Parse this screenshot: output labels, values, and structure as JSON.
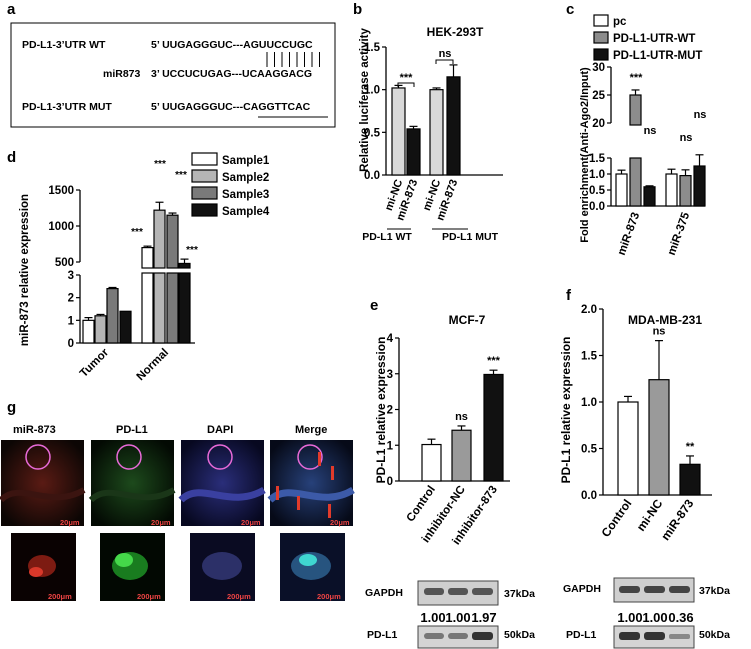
{
  "panel_letters": [
    "a",
    "b",
    "c",
    "d",
    "e",
    "f",
    "g"
  ],
  "panel_a": {
    "rows": [
      {
        "label": "PD-L1-3’UTR WT",
        "seq": "5’ UUGAGGGUC---AGUUCCUGC"
      },
      {
        "label": "miR873",
        "seq": "3’ UCCUCUGAG---UCAAGGACG"
      },
      {
        "label": "PD-L1-3’UTR MUT",
        "seq": "5’ UUGAGGGUC---CAGGTTCAC"
      }
    ]
  },
  "chart_data": [
    {
      "panel": "b",
      "type": "bar",
      "title": "HEK-293T",
      "ylabel": "Relative luciferase activity",
      "ylim": [
        0,
        1.5
      ],
      "yticks": [
        "0.0",
        "0.5",
        "1.0",
        "1.5"
      ],
      "categories": [
        "mi-NC",
        "miR-873",
        "mi-NC",
        "miR-873"
      ],
      "values": [
        1.02,
        0.54,
        1.0,
        1.15
      ],
      "errors": [
        0.03,
        0.03,
        0.02,
        0.14
      ],
      "colors": [
        "#d9d9d9",
        "#111111",
        "#d9d9d9",
        "#111111"
      ],
      "groups": [
        "PD-L1 WT",
        "PD-L1 MUT"
      ],
      "annotations": [
        "***",
        "ns"
      ]
    },
    {
      "panel": "c",
      "type": "bar",
      "ylabel": "Fold enrichment(Anti-Ago2/Input)",
      "legend": [
        "pc",
        "PD-L1-UTR-WT",
        "PD-L1-UTR-MUT"
      ],
      "legend_colors": [
        "#ffffff",
        "#8c8c8c",
        "#111111"
      ],
      "categories": [
        "miR-873",
        "miR-375"
      ],
      "series": [
        {
          "name": "pc",
          "values": [
            1.0,
            1.0
          ],
          "errors": [
            0.12,
            0.15
          ]
        },
        {
          "name": "PD-L1-UTR-WT",
          "values": [
            25,
            0.95
          ],
          "errors": [
            0.9,
            0.18
          ]
        },
        {
          "name": "PD-L1-UTR-MUT",
          "values": [
            0.6,
            1.25
          ],
          "errors": [
            0.03,
            0.35
          ]
        }
      ],
      "yticks_upper": [
        "20",
        "25",
        "30"
      ],
      "yticks_lower": [
        "0.0",
        "0.5",
        "1.0",
        "1.5"
      ],
      "annotations": [
        "***",
        "ns",
        "ns",
        "ns"
      ]
    },
    {
      "panel": "d",
      "type": "bar",
      "ylabel": "miR-873 relative expression",
      "legend": [
        "Sample1",
        "Sample2",
        "Sample3",
        "Sample4"
      ],
      "legend_colors": [
        "#ffffff",
        "#b5b5b5",
        "#7a7a7a",
        "#111111"
      ],
      "categories": [
        "Tumor",
        "Normal"
      ],
      "series": [
        {
          "name": "Sample1",
          "values": [
            1.0,
            700
          ],
          "errors": [
            0.12,
            20
          ]
        },
        {
          "name": "Sample2",
          "values": [
            1.2,
            1220
          ],
          "errors": [
            0.06,
            110
          ]
        },
        {
          "name": "Sample3",
          "values": [
            2.4,
            1150
          ],
          "errors": [
            0.05,
            30
          ]
        },
        {
          "name": "Sample4",
          "values": [
            1.4,
            480
          ],
          "errors": [
            0.0,
            60
          ]
        }
      ],
      "yticks_upper": [
        "500",
        "1000",
        "1500"
      ],
      "yticks_lower": [
        "0",
        "1",
        "2",
        "3"
      ],
      "annotations": [
        "***",
        "***",
        "***",
        "***"
      ]
    },
    {
      "panel": "e",
      "type": "bar",
      "title": "MCF-7",
      "ylabel": "PD-L1 relative expression",
      "ylim": [
        0,
        4
      ],
      "yticks": [
        "0",
        "1",
        "2",
        "3",
        "4"
      ],
      "categories": [
        "Control",
        "inhibitor-NC",
        "inhibitor-873"
      ],
      "values": [
        1.02,
        1.42,
        2.98
      ],
      "errors": [
        0.15,
        0.12,
        0.12
      ],
      "colors": [
        "#ffffff",
        "#9a9a9a",
        "#111111"
      ],
      "annotations": [
        "",
        "ns",
        "***"
      ]
    },
    {
      "panel": "f",
      "type": "bar",
      "title": "MDA-MB-231",
      "ylabel": "PD-L1 relative expression",
      "ylim": [
        0,
        2
      ],
      "yticks": [
        "0.0",
        "0.5",
        "1.0",
        "1.5",
        "2.0"
      ],
      "categories": [
        "Control",
        "mi-NC",
        "miR-873"
      ],
      "values": [
        1.0,
        1.24,
        0.33
      ],
      "errors": [
        0.06,
        0.42,
        0.09
      ],
      "colors": [
        "#ffffff",
        "#9a9a9a",
        "#111111"
      ],
      "annotations": [
        "",
        "ns",
        "**"
      ]
    }
  ],
  "blot_e": {
    "gapdh": "GAPDH",
    "gapdh_kda": "37kDa",
    "pdl1": "PD-L1",
    "pdl1_kda": "50kDa",
    "values": [
      "1.00",
      "1.00",
      "1.97"
    ]
  },
  "blot_f": {
    "gapdh": "GAPDH",
    "gapdh_kda": "37kDa",
    "pdl1": "PD-L1",
    "pdl1_kda": "50kDa",
    "values": [
      "1.00",
      "1.00",
      "0.36"
    ]
  },
  "panel_g": {
    "channels": [
      "miR-873",
      "PD-L1",
      "DAPI",
      "Merge"
    ],
    "scale_top": "20μm",
    "scale_bottom": "200μm"
  }
}
